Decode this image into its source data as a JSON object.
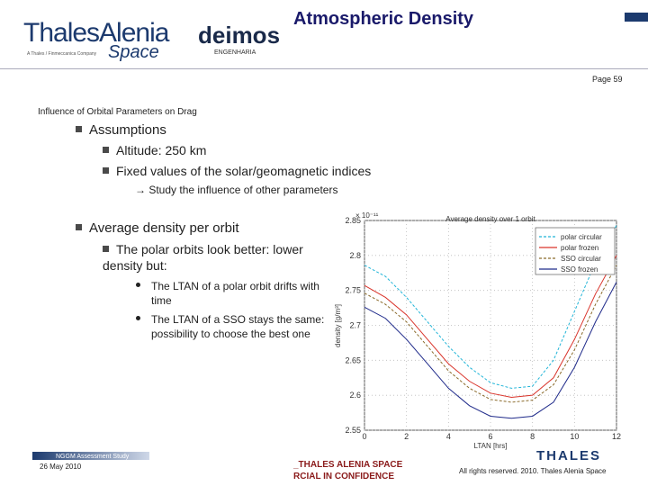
{
  "header": {
    "title": "Atmospheric Density",
    "logo_main": "ThalesAlenia",
    "logo_space": "Space",
    "logo_tagline": "A Thales / Finmeccanica Company",
    "logo_partner": "deimos",
    "logo_partner_sub": "ENGENHARIA",
    "page": "Page 59"
  },
  "section": "Influence of Orbital Parameters on Drag",
  "bullets": [
    {
      "text": "Assumptions",
      "items": [
        "Altitude: 250 km",
        "Fixed values of the solar/geomagnetic indices"
      ],
      "note": "→ Study the influence of other parameters"
    },
    {
      "text": "Average density per orbit",
      "items": [
        "The polar orbits look better: lower density but:"
      ],
      "subitems": [
        "The LTAN of a polar orbit drifts with time",
        "The LTAN of a SSO stays the same: possibility to choose the best one"
      ]
    }
  ],
  "chart": {
    "type": "line",
    "title": "Average density over 1 orbit",
    "x_label": "LTAN [hrs]",
    "y_label": "density [g/m³]",
    "y_exponent": "× 10⁻¹¹",
    "x": [
      0,
      1,
      2,
      3,
      4,
      5,
      6,
      7,
      8,
      9,
      10,
      11,
      12
    ],
    "series": [
      {
        "name": "polar circular",
        "color": "#22b5d8",
        "values": [
          2.786,
          2.77,
          2.74,
          2.705,
          2.67,
          2.64,
          2.618,
          2.61,
          2.613,
          2.65,
          2.72,
          2.79,
          2.843
        ]
      },
      {
        "name": "polar frozen",
        "color": "#d9342b",
        "values": [
          2.757,
          2.74,
          2.715,
          2.68,
          2.645,
          2.62,
          2.603,
          2.597,
          2.6,
          2.625,
          2.68,
          2.745,
          2.8
        ]
      },
      {
        "name": "SSO circular",
        "color": "#8a6a2a",
        "values": [
          2.746,
          2.73,
          2.705,
          2.67,
          2.635,
          2.61,
          2.594,
          2.59,
          2.593,
          2.615,
          2.665,
          2.73,
          2.786
        ]
      },
      {
        "name": "SSO frozen",
        "color": "#1f2a8a",
        "values": [
          2.726,
          2.71,
          2.68,
          2.645,
          2.61,
          2.585,
          2.57,
          2.567,
          2.57,
          2.59,
          2.64,
          2.705,
          2.762
        ]
      }
    ],
    "xlim": [
      0,
      12
    ],
    "xticks": [
      0,
      2,
      4,
      6,
      8,
      10,
      12
    ],
    "ylim": [
      2.55,
      2.85
    ],
    "yticks": [
      2.55,
      2.6,
      2.65,
      2.7,
      2.75,
      2.8,
      2.85
    ],
    "grid": true,
    "legend": "top-right"
  },
  "footer": {
    "study": "NGGM Assessment Study",
    "date": "26 May 2010",
    "company": "_THALES ALENIA SPACE",
    "confidential": "RCIAL IN CONFIDENCE",
    "rights": "All rights reserved. 2010. Thales Alenia Space",
    "brand": "THALES"
  }
}
